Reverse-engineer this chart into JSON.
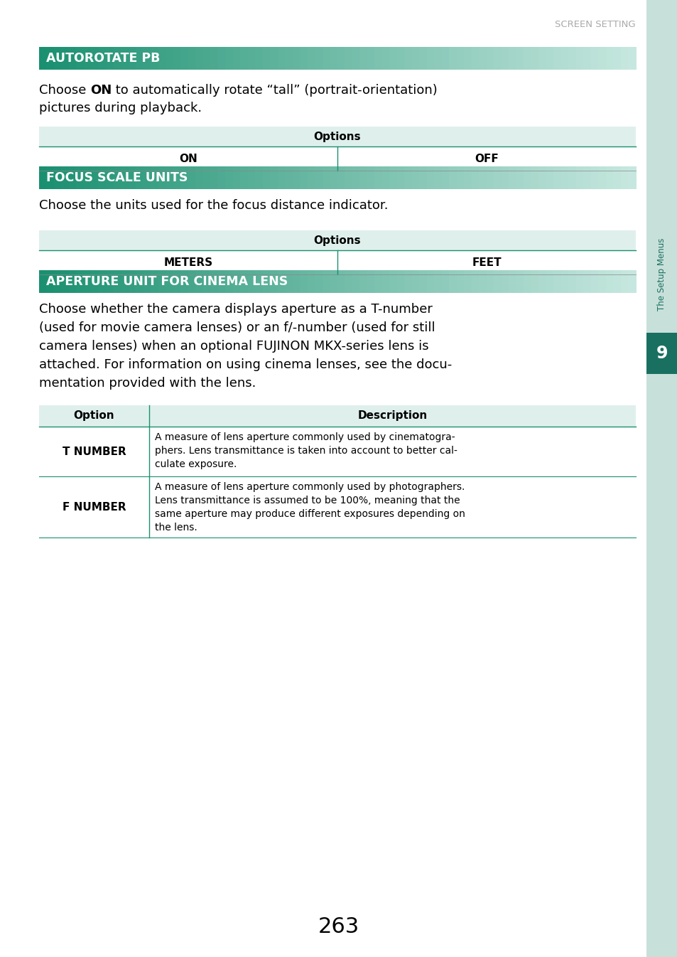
{
  "page_header": "SCREEN SETTING",
  "page_number": "263",
  "sidebar_text": "The Setup Menus",
  "sidebar_number": "9",
  "background_color": "#ffffff",
  "header_color": "#aaaaaa",
  "teal_dark": "#1a9070",
  "teal_gradient_end": "#c8e8e0",
  "teal_medium": "#4aaa90",
  "light_bg": "#dff0ec",
  "sidebar_bg": "#c8e0da",
  "sidebar_tab_bg": "#1a7060",
  "section1_title": "AUTOROTATE PB",
  "table1_header": "Options",
  "table1_col1": "ON",
  "table1_col2": "OFF",
  "section2_title": "FOCUS SCALE UNITS",
  "section2_body": "Choose the units used for the focus distance indicator.",
  "table2_header": "Options",
  "table2_col1": "METERS",
  "table2_col2": "FEET",
  "section3_title": "APERTURE UNIT FOR CINEMA LENS",
  "table3_header1": "Option",
  "table3_header2": "Description",
  "table3_row1_col1": "T NUMBER",
  "table3_row2_col1": "F NUMBER",
  "line_color": "#1a9070"
}
